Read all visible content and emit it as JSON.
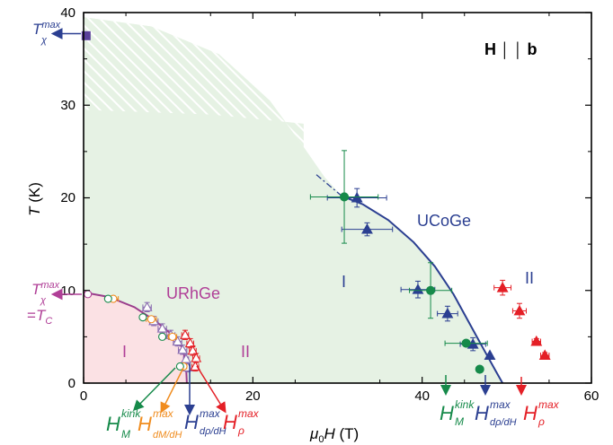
{
  "chart_data": {
    "type": "scatter",
    "xlabel": {
      "mu": "μ",
      "sub0": "0",
      "H": "H",
      "unit": " (T)"
    },
    "ylabel": {
      "T": "T",
      "unit": " (K)"
    },
    "xlim": [
      0,
      60
    ],
    "ylim": [
      0,
      40
    ],
    "xticks": [
      0,
      20,
      40,
      60
    ],
    "yticks": [
      0,
      10,
      20,
      30,
      40
    ],
    "xticks_labels": [
      "0",
      "20",
      "40",
      "60"
    ],
    "yticks_labels": [
      "0",
      "10",
      "20",
      "30",
      "40"
    ],
    "field_label": {
      "H": "H",
      "bars": "│ │",
      "b": "b"
    },
    "regions": {
      "ucoge": {
        "name": "UCoGe",
        "roman_I": "I",
        "roman_II": "II"
      },
      "urhge": {
        "name": "URhGe",
        "roman_I": "I",
        "roman_II": "II"
      }
    },
    "colors": {
      "blue": "#2b3f91",
      "green": "#168a4a",
      "red": "#e41f26",
      "orange": "#f08c1e",
      "purple": "#8a6cb0",
      "magenta": "#b03f97",
      "navy_square": "#5a3f9a",
      "green_fill": "#e6f2e4",
      "pink_fill": "#fbe1e4"
    },
    "phase_boundary_UCoGe": [
      [
        30.5,
        20.2
      ],
      [
        33,
        19.3
      ],
      [
        36,
        17.6
      ],
      [
        39,
        15.2
      ],
      [
        41.5,
        12.6
      ],
      [
        43.7,
        9.6
      ],
      [
        45.5,
        6.6
      ],
      [
        47.3,
        3.6
      ],
      [
        48.7,
        1.3
      ],
      [
        49.5,
        0
      ]
    ],
    "phase_boundary_UCoGe_extrapolation": [
      [
        27.5,
        22.5
      ],
      [
        30.5,
        20.2
      ]
    ],
    "phase_boundary_URhGe": [
      [
        0,
        9.8
      ],
      [
        3,
        9.3
      ],
      [
        6,
        8.2
      ],
      [
        8.5,
        6.7
      ],
      [
        10.5,
        5.2
      ],
      [
        11.7,
        3.8
      ],
      [
        12.1,
        2.0
      ],
      [
        12.2,
        0
      ]
    ],
    "series": [
      {
        "name": "UCoGe_dp_dH",
        "marker": "triangle",
        "filled": true,
        "color": "blue",
        "points": [
          [
            32.3,
            20.0,
            3.5,
            1.0
          ],
          [
            33.5,
            16.6,
            3.0,
            0.7
          ],
          [
            39.5,
            10.1,
            2.0,
            0.9
          ],
          [
            43.0,
            7.5,
            1.2,
            0.8
          ],
          [
            46.0,
            4.2,
            1.5,
            0.7
          ],
          [
            48.0,
            3.0,
            0.0,
            0.0
          ]
        ]
      },
      {
        "name": "UCoGe_kink",
        "marker": "circle",
        "filled": true,
        "color": "green",
        "points": [
          [
            30.8,
            20.1,
            4.0,
            5.0
          ],
          [
            41.0,
            10.0,
            2.5,
            3.0
          ],
          [
            45.2,
            4.3,
            2.5,
            0.0
          ],
          [
            46.8,
            1.5,
            0.0,
            0.0
          ]
        ]
      },
      {
        "name": "UCoGe_rho",
        "marker": "triangle",
        "filled": true,
        "color": "red",
        "points": [
          [
            49.5,
            10.3,
            1.0,
            0.8
          ],
          [
            51.5,
            7.8,
            0.8,
            0.8
          ],
          [
            53.5,
            4.5,
            0.5,
            0.3
          ],
          [
            54.5,
            3.0,
            0.5,
            0.3
          ]
        ]
      },
      {
        "name": "URhGe_dp_dH",
        "marker": "triangle",
        "filled": false,
        "color": "purple",
        "points": [
          [
            7.5,
            8.2,
            0.5,
            0.5
          ],
          [
            8.3,
            6.7,
            0.5,
            0.5
          ],
          [
            9.3,
            5.9,
            0.5,
            0.5
          ],
          [
            10.3,
            5.2,
            0.5,
            0.5
          ],
          [
            11.1,
            4.5,
            0.5,
            0.5
          ],
          [
            11.7,
            3.6,
            0.5,
            0.5
          ],
          [
            12.1,
            2.6,
            0.3,
            0.5
          ],
          [
            12.3,
            1.7,
            0.3,
            0.5
          ]
        ]
      },
      {
        "name": "URhGe_rho",
        "marker": "triangle",
        "filled": false,
        "color": "red",
        "points": [
          [
            12.0,
            5.2,
            0.4,
            0.5
          ],
          [
            12.6,
            4.3,
            0.4,
            0.5
          ],
          [
            12.9,
            3.5,
            0.4,
            0.5
          ],
          [
            13.3,
            2.7,
            0.4,
            0.5
          ],
          [
            13.2,
            1.8,
            0.4,
            0.5
          ]
        ]
      },
      {
        "name": "URhGe_dM_dH",
        "marker": "circle",
        "filled": false,
        "color": "orange",
        "points": [
          [
            3.5,
            9.1,
            0.6,
            0.3
          ],
          [
            8.0,
            6.9,
            0.6,
            0.3
          ],
          [
            10.5,
            5.0,
            0.5,
            0.3
          ],
          [
            11.8,
            1.8,
            0.4,
            0.3
          ]
        ]
      },
      {
        "name": "URhGe_kink",
        "marker": "circle",
        "filled": false,
        "color": "green",
        "points": [
          [
            2.9,
            9.1,
            0,
            0
          ],
          [
            7.0,
            7.1,
            0,
            0
          ],
          [
            9.3,
            5.0,
            0,
            0
          ],
          [
            11.4,
            1.8,
            0,
            0
          ]
        ]
      },
      {
        "name": "URhGe_zero_field",
        "marker": "circle",
        "filled": false,
        "color": "magenta",
        "points": [
          [
            0.5,
            9.6,
            0,
            0
          ]
        ]
      },
      {
        "name": "T_chi_max_UCoGe",
        "marker": "square",
        "filled": true,
        "color": "navy_square",
        "points": [
          [
            0.3,
            37.5,
            0,
            0
          ]
        ]
      }
    ],
    "annotations": {
      "tchi_top": {
        "T": "T",
        "sup": "max",
        "sub": "χ"
      },
      "tchi_mid": {
        "T": "T",
        "sup": "max",
        "sub": "χ",
        "eq": "=",
        "TC": "T",
        "TC_sub": "C"
      },
      "bottom_green": {
        "H": "H",
        "sup": "kink",
        "sub": "M"
      },
      "bottom_orange": {
        "H": "H",
        "sup": "max",
        "sub": "dM/dH"
      },
      "bottom_blue": {
        "H": "H",
        "sup": "max",
        "sub": "dρ/dH"
      },
      "bottom_red": {
        "H": "H",
        "sup": "max",
        "sub": "ρ"
      }
    }
  }
}
